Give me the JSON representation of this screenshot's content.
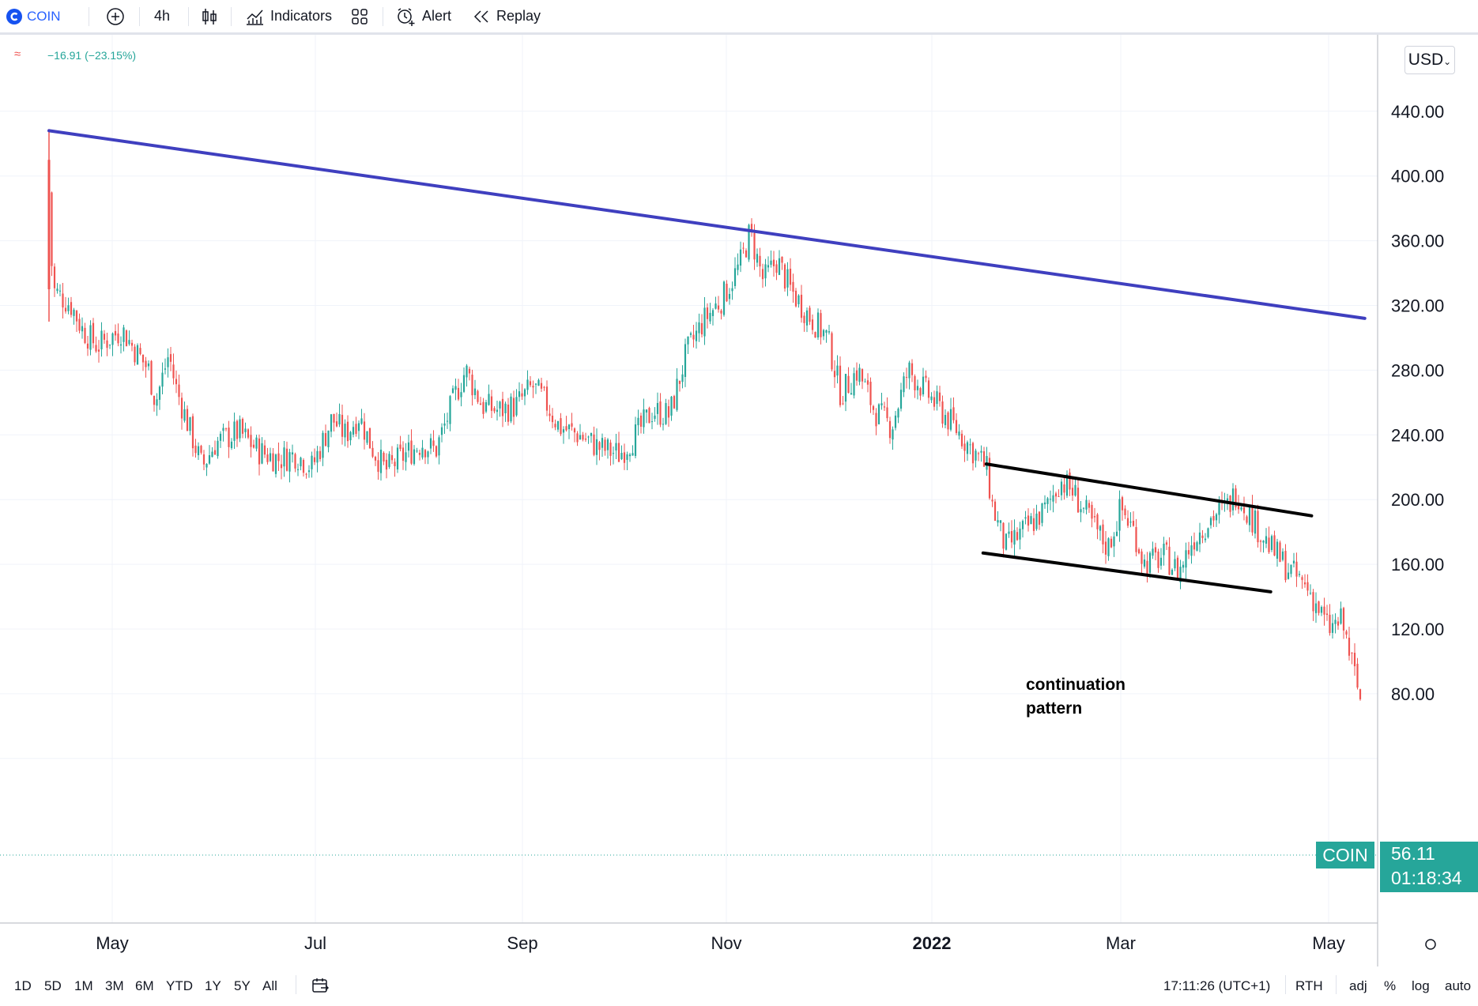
{
  "toolbar": {
    "symbol": "COIN",
    "interval": "4h",
    "indicators_label": "Indicators",
    "alert_label": "Alert",
    "replay_label": "Replay"
  },
  "legend": {
    "change": "−16.91 (−23.15%)"
  },
  "price_scale": {
    "currency": "USD",
    "ticks": [
      "440.00",
      "400.00",
      "360.00",
      "320.00",
      "280.00",
      "240.00",
      "200.00",
      "160.00",
      "120.00",
      "80.00"
    ]
  },
  "last_price": {
    "symbol": "COIN",
    "price": "56.11",
    "countdown": "01:18:34"
  },
  "time_axis": {
    "labels": [
      "May",
      "Jul",
      "Sep",
      "Nov",
      "2022",
      "Mar",
      "May"
    ]
  },
  "annotation": {
    "line1": "continuation",
    "line2": "pattern"
  },
  "bottom": {
    "ranges": [
      "1D",
      "5D",
      "1M",
      "3M",
      "6M",
      "YTD",
      "1Y",
      "5Y",
      "All"
    ],
    "clock": "17:11:26 (UTC+1)",
    "session": "RTH",
    "options": [
      "adj",
      "%",
      "log",
      "auto"
    ]
  },
  "colors": {
    "up": "#26a69a",
    "down": "#ef5350",
    "trendline": "#3f3fbf",
    "channel": "#000000",
    "price_tag": "#26a69a"
  },
  "chart_data": {
    "type": "candlestick",
    "symbol": "COIN",
    "ylim": [
      40,
      470
    ],
    "trendlines": [
      {
        "name": "long-term resistance",
        "points": [
          [
            "2021-04-14",
            428
          ],
          [
            "2022-05-12",
            312
          ]
        ]
      },
      {
        "name": "channel upper",
        "points": [
          [
            "2022-01-18",
            222
          ],
          [
            "2022-04-26",
            190
          ]
        ]
      },
      {
        "name": "channel lower",
        "points": [
          [
            "2022-01-17",
            167
          ],
          [
            "2022-04-14",
            143
          ]
        ]
      }
    ],
    "path": [
      [
        "2021-04-14",
        390
      ],
      [
        "2021-04-15",
        330
      ],
      [
        "2021-04-20",
        320
      ],
      [
        "2021-04-23",
        305
      ],
      [
        "2021-04-27",
        295
      ],
      [
        "2021-05-04",
        305
      ],
      [
        "2021-05-07",
        295
      ],
      [
        "2021-05-12",
        280
      ],
      [
        "2021-05-14",
        260
      ],
      [
        "2021-05-18",
        290
      ],
      [
        "2021-05-20",
        270
      ],
      [
        "2021-05-24",
        245
      ],
      [
        "2021-05-28",
        220
      ],
      [
        "2021-06-01",
        235
      ],
      [
        "2021-06-08",
        242
      ],
      [
        "2021-06-14",
        230
      ],
      [
        "2021-06-20",
        225
      ],
      [
        "2021-06-25",
        228
      ],
      [
        "2021-06-30",
        220
      ],
      [
        "2021-07-06",
        250
      ],
      [
        "2021-07-10",
        240
      ],
      [
        "2021-07-14",
        252
      ],
      [
        "2021-07-18",
        232
      ],
      [
        "2021-07-22",
        218
      ],
      [
        "2021-07-28",
        228
      ],
      [
        "2021-08-02",
        235
      ],
      [
        "2021-08-06",
        230
      ],
      [
        "2021-08-12",
        265
      ],
      [
        "2021-08-15",
        280
      ],
      [
        "2021-08-20",
        258
      ],
      [
        "2021-08-25",
        255
      ],
      [
        "2021-08-30",
        258
      ],
      [
        "2021-09-04",
        270
      ],
      [
        "2021-09-08",
        260
      ],
      [
        "2021-09-12",
        245
      ],
      [
        "2021-09-18",
        240
      ],
      [
        "2021-09-24",
        232
      ],
      [
        "2021-09-30",
        228
      ],
      [
        "2021-10-05",
        240
      ],
      [
        "2021-10-10",
        255
      ],
      [
        "2021-10-15",
        252
      ],
      [
        "2021-10-20",
        290
      ],
      [
        "2021-10-25",
        310
      ],
      [
        "2021-10-31",
        325
      ],
      [
        "2021-11-05",
        345
      ],
      [
        "2021-11-08",
        365
      ],
      [
        "2021-11-12",
        335
      ],
      [
        "2021-11-16",
        348
      ],
      [
        "2021-11-20",
        330
      ],
      [
        "2021-11-25",
        315
      ],
      [
        "2021-12-01",
        300
      ],
      [
        "2021-12-05",
        265
      ],
      [
        "2021-12-10",
        280
      ],
      [
        "2021-12-15",
        255
      ],
      [
        "2021-12-20",
        245
      ],
      [
        "2021-12-25",
        280
      ],
      [
        "2022-01-01",
        262
      ],
      [
        "2022-01-08",
        245
      ],
      [
        "2022-01-14",
        230
      ],
      [
        "2022-01-18",
        220
      ],
      [
        "2022-01-20",
        195
      ],
      [
        "2022-01-24",
        170
      ],
      [
        "2022-02-01",
        185
      ],
      [
        "2022-02-06",
        195
      ],
      [
        "2022-02-10",
        212
      ],
      [
        "2022-02-14",
        205
      ],
      [
        "2022-02-20",
        185
      ],
      [
        "2022-02-25",
        170
      ],
      [
        "2022-03-01",
        195
      ],
      [
        "2022-03-05",
        180
      ],
      [
        "2022-03-08",
        160
      ],
      [
        "2022-03-14",
        165
      ],
      [
        "2022-03-18",
        155
      ],
      [
        "2022-03-22",
        175
      ],
      [
        "2022-03-28",
        190
      ],
      [
        "2022-04-01",
        195
      ],
      [
        "2022-04-04",
        205
      ],
      [
        "2022-04-08",
        190
      ],
      [
        "2022-04-14",
        170
      ],
      [
        "2022-04-20",
        155
      ],
      [
        "2022-04-25",
        145
      ],
      [
        "2022-05-01",
        120
      ],
      [
        "2022-05-05",
        125
      ],
      [
        "2022-05-08",
        100
      ],
      [
        "2022-05-11",
        73
      ]
    ]
  }
}
